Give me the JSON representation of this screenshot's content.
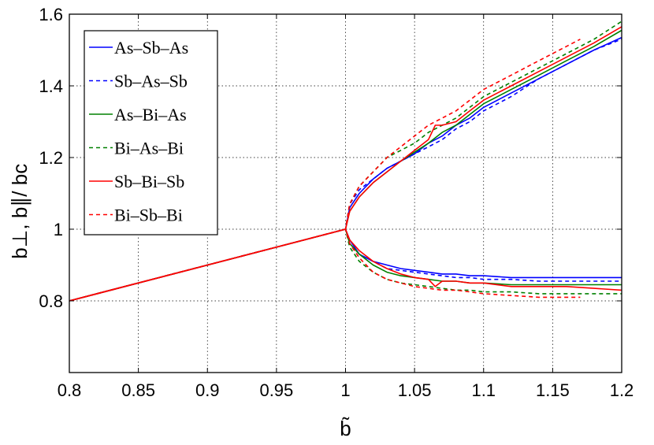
{
  "chart_data": {
    "type": "line",
    "title": "",
    "xlabel": "b̃",
    "ylabel": "b⊥, b∥/ bc",
    "xlim": [
      0.8,
      1.2
    ],
    "ylim": [
      0.6,
      1.6
    ],
    "xticks": [
      0.8,
      0.85,
      0.9,
      0.95,
      1,
      1.05,
      1.1,
      1.15,
      1.2
    ],
    "xtick_labels": [
      "0.8",
      "0.85",
      "0.9",
      "0.95",
      "1",
      "1.05",
      "1.1",
      "1.15",
      "1.2"
    ],
    "yticks": [
      0.8,
      1,
      1.2,
      1.4,
      1.6
    ],
    "ytick_labels": [
      "0.8",
      "1",
      "1.2",
      "1.4",
      "1.6"
    ],
    "grid": true,
    "legend_position": "top-left",
    "series": [
      {
        "name": "As–Sb–As",
        "color": "#0000ff",
        "dash": "solid",
        "x": [
          0.8,
          1.0,
          1.003,
          1.01,
          1.02,
          1.03,
          1.04,
          1.05,
          1.06,
          1.07,
          1.08,
          1.09,
          1.1,
          1.12,
          1.14,
          1.16,
          1.18,
          1.2
        ],
        "upper": [
          0.8,
          1.0,
          1.06,
          1.1,
          1.14,
          1.17,
          1.19,
          1.21,
          1.24,
          1.26,
          1.29,
          1.31,
          1.34,
          1.38,
          1.42,
          1.46,
          1.5,
          1.535
        ],
        "lower": [
          0.8,
          1.0,
          0.97,
          0.93,
          0.91,
          0.9,
          0.89,
          0.885,
          0.88,
          0.875,
          0.875,
          0.87,
          0.87,
          0.865,
          0.865,
          0.865,
          0.865,
          0.865
        ]
      },
      {
        "name": "Sb–As–Sb",
        "color": "#0000ff",
        "dash": "dashed",
        "x": [
          0.8,
          1.0,
          1.003,
          1.01,
          1.02,
          1.03,
          1.04,
          1.05,
          1.06,
          1.07,
          1.08,
          1.09,
          1.1,
          1.12,
          1.14,
          1.16,
          1.18,
          1.2
        ],
        "upper": [
          0.8,
          1.0,
          1.07,
          1.11,
          1.14,
          1.17,
          1.19,
          1.21,
          1.23,
          1.25,
          1.28,
          1.3,
          1.33,
          1.37,
          1.42,
          1.46,
          1.5,
          1.53
        ],
        "lower": [
          0.8,
          1.0,
          0.96,
          0.93,
          0.91,
          0.89,
          0.885,
          0.88,
          0.875,
          0.87,
          0.865,
          0.865,
          0.86,
          0.86,
          0.855,
          0.855,
          0.855,
          0.855
        ]
      },
      {
        "name": "As–Bi–As",
        "color": "#008000",
        "dash": "solid",
        "x": [
          0.8,
          1.0,
          1.003,
          1.01,
          1.02,
          1.03,
          1.04,
          1.05,
          1.06,
          1.07,
          1.08,
          1.09,
          1.1,
          1.12,
          1.14,
          1.16,
          1.18,
          1.2
        ],
        "upper": [
          0.8,
          1.0,
          1.05,
          1.09,
          1.13,
          1.16,
          1.19,
          1.215,
          1.24,
          1.27,
          1.29,
          1.32,
          1.35,
          1.39,
          1.43,
          1.47,
          1.51,
          1.555
        ],
        "lower": [
          0.8,
          1.0,
          0.96,
          0.93,
          0.9,
          0.88,
          0.87,
          0.865,
          0.86,
          0.855,
          0.855,
          0.85,
          0.85,
          0.845,
          0.845,
          0.845,
          0.845,
          0.845
        ]
      },
      {
        "name": "Bi–As–Bi",
        "color": "#008000",
        "dash": "dashed",
        "x": [
          0.8,
          1.0,
          1.003,
          1.01,
          1.02,
          1.03,
          1.04,
          1.05,
          1.06,
          1.07,
          1.08,
          1.09,
          1.1,
          1.12,
          1.14,
          1.16,
          1.18,
          1.2
        ],
        "upper": [
          0.8,
          1.0,
          1.07,
          1.12,
          1.16,
          1.2,
          1.22,
          1.24,
          1.27,
          1.29,
          1.31,
          1.34,
          1.37,
          1.41,
          1.45,
          1.49,
          1.53,
          1.58
        ],
        "lower": [
          0.8,
          1.0,
          0.95,
          0.91,
          0.88,
          0.86,
          0.85,
          0.845,
          0.84,
          0.835,
          0.83,
          0.83,
          0.825,
          0.825,
          0.82,
          0.82,
          0.82,
          0.82
        ]
      },
      {
        "name": "Sb–Bi–Sb",
        "color": "#ff0000",
        "dash": "solid",
        "x": [
          0.8,
          1.0,
          1.003,
          1.01,
          1.02,
          1.03,
          1.04,
          1.05,
          1.06,
          1.065,
          1.07,
          1.08,
          1.09,
          1.1,
          1.12,
          1.14,
          1.16,
          1.18,
          1.2
        ],
        "upper": [
          0.8,
          1.0,
          1.05,
          1.09,
          1.13,
          1.16,
          1.19,
          1.22,
          1.25,
          1.29,
          1.29,
          1.3,
          1.33,
          1.36,
          1.4,
          1.44,
          1.48,
          1.52,
          1.565
        ],
        "lower": [
          0.8,
          1.0,
          0.97,
          0.94,
          0.91,
          0.89,
          0.875,
          0.865,
          0.86,
          0.84,
          0.855,
          0.855,
          0.85,
          0.85,
          0.84,
          0.84,
          0.84,
          0.835,
          0.83
        ]
      },
      {
        "name": "Bi–Sb–Bi",
        "color": "#ff0000",
        "dash": "dashed",
        "x": [
          0.8,
          1.0,
          1.003,
          1.01,
          1.02,
          1.03,
          1.04,
          1.05,
          1.06,
          1.07,
          1.08,
          1.09,
          1.1,
          1.12,
          1.14,
          1.16,
          1.17
        ],
        "upper": [
          0.8,
          1.0,
          1.07,
          1.12,
          1.16,
          1.2,
          1.23,
          1.26,
          1.29,
          1.31,
          1.33,
          1.36,
          1.39,
          1.43,
          1.47,
          1.51,
          1.53
        ],
        "lower": [
          0.8,
          1.0,
          0.96,
          0.92,
          0.88,
          0.86,
          0.85,
          0.84,
          0.835,
          0.83,
          0.83,
          0.825,
          0.82,
          0.815,
          0.81,
          0.81,
          0.81
        ]
      }
    ]
  }
}
